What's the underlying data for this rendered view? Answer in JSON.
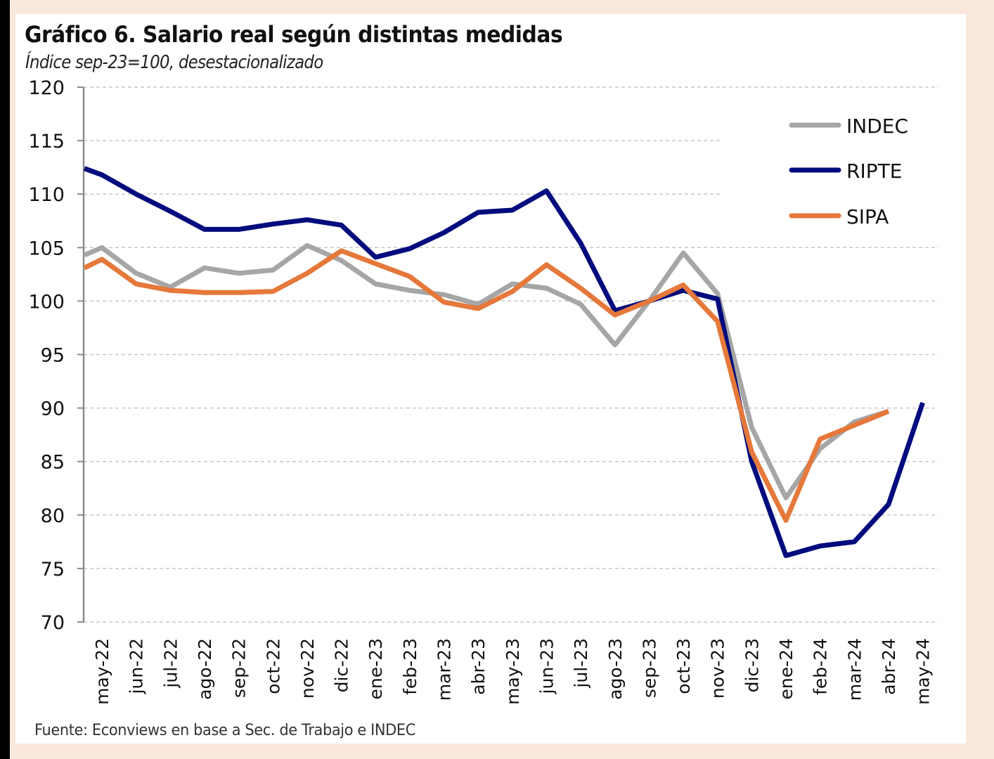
{
  "figure": {
    "title": "Gráfico 6. Salario real según distintas medidas",
    "subtitle": "Índice sep-23=100, desestacionalizado",
    "source": "Fuente: Econviews en base a Sec. de Trabajo e INDEC"
  },
  "chart_data": {
    "type": "line",
    "title": "Gráfico 6. Salario real según distintas medidas",
    "subtitle": "Índice sep-23=100, desestacionalizado",
    "xlabel": "",
    "ylabel": "",
    "ylim": [
      70,
      120
    ],
    "yticks": [
      70,
      75,
      80,
      85,
      90,
      95,
      100,
      105,
      110,
      115,
      120
    ],
    "grid": true,
    "legend_position": "top-right",
    "categories": [
      "may-22",
      "jun-22",
      "jul-22",
      "ago-22",
      "sep-22",
      "oct-22",
      "nov-22",
      "dic-22",
      "ene-23",
      "feb-23",
      "mar-23",
      "abr-23",
      "may-23",
      "jun-23",
      "jul-23",
      "ago-23",
      "sep-23",
      "oct-23",
      "nov-23",
      "dic-23",
      "ene-24",
      "feb-24",
      "mar-24",
      "abr-24",
      "may-24"
    ],
    "series": [
      {
        "name": "INDEC",
        "color": "#a6a6a6",
        "start_value_at_axis": 104.3,
        "values": [
          105.0,
          102.6,
          101.3,
          103.1,
          102.6,
          102.9,
          105.2,
          103.8,
          101.6,
          101.0,
          100.6,
          99.7,
          101.6,
          101.2,
          99.7,
          95.9,
          100.0,
          104.5,
          100.7,
          88.2,
          81.6,
          86.2,
          88.7,
          89.7,
          null
        ]
      },
      {
        "name": "RIPTE",
        "color": "#000c7d",
        "start_value_at_axis": 112.4,
        "values": [
          111.8,
          110.0,
          108.4,
          106.7,
          106.7,
          107.2,
          107.6,
          107.1,
          104.1,
          104.9,
          106.4,
          108.3,
          108.5,
          110.3,
          105.4,
          99.1,
          100.0,
          101.0,
          100.2,
          85.0,
          76.2,
          77.1,
          77.5,
          81.0,
          90.5
        ]
      },
      {
        "name": "SIPA",
        "color": "#e5783a",
        "start_value_at_axis": 103.1,
        "values": [
          103.9,
          101.6,
          101.0,
          100.8,
          100.8,
          100.9,
          102.6,
          104.7,
          103.5,
          102.3,
          99.9,
          99.3,
          100.9,
          103.4,
          101.2,
          98.7,
          100.0,
          101.5,
          98.1,
          85.9,
          79.5,
          87.1,
          88.4,
          89.7,
          null
        ]
      }
    ]
  }
}
